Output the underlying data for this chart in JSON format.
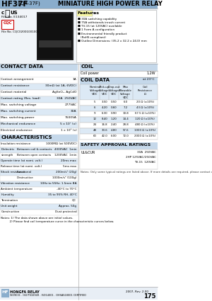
{
  "title_bold": "HF37F",
  "title_sub": "(JQX-37F)",
  "title_right": "MINIATURE HIGH POWER RELAY",
  "header_bg": "#8aadcc",
  "section_bg": "#c5d8ea",
  "light_blue": "#dce9f5",
  "white": "#ffffff",
  "bg_main": "#f0f4f8",
  "features_title": "Features",
  "features": [
    "30A switching capability",
    "75A withstands inrush current",
    "TV-15 (at 120VAC) available",
    "1 Form A configuration",
    "Environmental friendly product",
    "  (RoHS compliant)",
    "Outline Dimensions: (35.2 x 32.2 x 24.0) mm"
  ],
  "contact_data_title": "CONTACT DATA",
  "coil_title": "COIL",
  "coil_power_label": "Coil power",
  "coil_power_val": "1.2W",
  "contact_rows": [
    [
      "Contact arrangement",
      "1A"
    ],
    [
      "Contact resistance",
      "30mΩ (at 1A, 6VDC)"
    ],
    [
      "Contact material",
      "AgSnO₂, AgCdO"
    ],
    [
      "Contact rating (Res. load)",
      "30A  250VAC"
    ],
    [
      "Max. switching voltage",
      "277VAC"
    ],
    [
      "Max. switching current",
      "30A"
    ],
    [
      "Max. switching power",
      "7500VA"
    ],
    [
      "Mechanical endurance",
      "5 x 10⁷ (x)"
    ],
    [
      "Electrical endurance",
      "1 x 10⁵ (x)"
    ]
  ],
  "coil_data_title": "COIL DATA",
  "coil_at": "at 23°C",
  "coil_headers": [
    "Nominal\nVoltage\nVDC",
    "Pick-up\nVoltage\nVDC",
    "Drop-out\nVoltage\nVDC",
    "Max\nAllowable\nVoltage\nVDC",
    "Coil\nResistance\nΩ"
  ],
  "coil_rows": [
    [
      "5",
      "3.50",
      "0.50",
      "6.0",
      "20 Ω (±10%)"
    ],
    [
      "6",
      "4.20",
      "0.60",
      "7.2",
      "43 Ω (±10%)"
    ],
    [
      "9",
      "6.30",
      "0.90",
      "10.8",
      "67.5 Ω (±10%)"
    ],
    [
      "12",
      "8.40",
      "1.20",
      "14.4",
      "120 Ω (±10%)"
    ],
    [
      "24",
      "16.8",
      "2.40",
      "28.8",
      "480 Ω (±10%)"
    ],
    [
      "48",
      "33.6",
      "4.80",
      "57.6",
      "1000 Ω (±10%)"
    ],
    [
      "60",
      "42.0",
      "6.00",
      "72.0",
      "2000 Ω (±10%)"
    ]
  ],
  "char_title": "CHARACTERISTICS",
  "char_rows": [
    [
      "Insulation resistance",
      "",
      "1000MΩ (at 500VDC)"
    ],
    [
      "Dielectric",
      "Between coil & contacts",
      "4000VAC  1min"
    ],
    [
      "strength",
      "Between open contacts",
      "1200VAC  1min"
    ],
    [
      "Operate time (at nomi. volt.)",
      "",
      "20ms max"
    ],
    [
      "Release time (at nomi. volt.)",
      "",
      "5ms max"
    ],
    [
      "Shock resistance",
      "Functional",
      "200m/s² (20g)"
    ],
    [
      "",
      "Destructive",
      "1000m/s² (100g)"
    ],
    [
      "Vibration resistance",
      "",
      "10Hz to 55Hz: 1.5mm BA"
    ],
    [
      "Ambient temperature",
      "",
      "-40°C to 70°C"
    ],
    [
      "Humidity",
      "",
      "35 to 95% RH, 40°C"
    ],
    [
      "Termination",
      "",
      "QC"
    ],
    [
      "Unit weight",
      "",
      "Approx. 50g"
    ],
    [
      "Construction",
      "",
      "Dust protected"
    ]
  ],
  "safety_title": "SAFETY APPROVAL RATINGS",
  "safety_ul_label": "UL&CUR",
  "safety_ul_vals": [
    "30A  250VAC",
    "2HP 125VAC/250VAC",
    "TV-15  120VAC"
  ],
  "safety_note": "Notes: Only some typical ratings are listed above. If more details are required, please contact us.",
  "notes": [
    "Notes: 1) The data shown above are initial values.",
    "          2) Please find coil temperature curve in the characteristic curves below."
  ],
  "footer_logo_text": "HONGFA RELAY",
  "footer_cert": "ISO9001 . ISO/TS16949 . ISO14001 . OHSAS18001 CERTIFIED",
  "footer_right": "2007, Rev. 2.00",
  "footer_page": "175"
}
